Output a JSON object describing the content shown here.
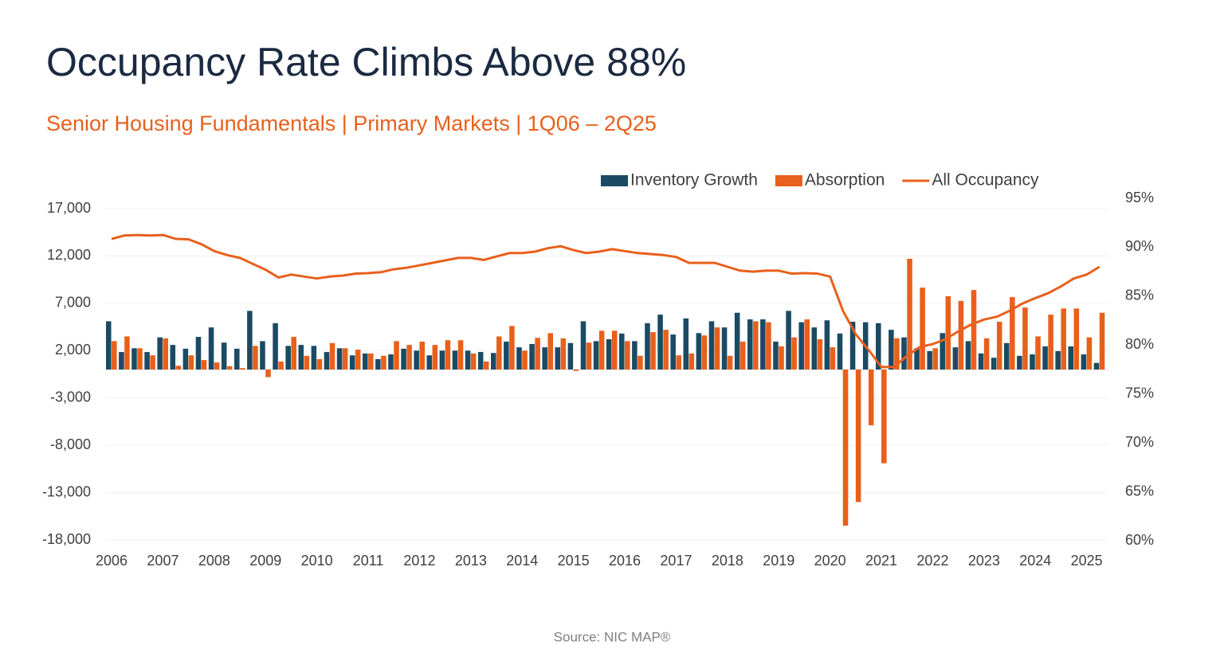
{
  "chart_data": {
    "type": "bar-line",
    "title": "Occupancy Rate Climbs Above 88%",
    "subtitle": "Senior Housing Fundamentals | Primary Markets | 1Q06 – 2Q25",
    "source": "Source: NIC MAP®",
    "categories": [
      "2006",
      null,
      null,
      null,
      "2007",
      null,
      null,
      null,
      "2008",
      null,
      null,
      null,
      "2009",
      null,
      null,
      null,
      "2010",
      null,
      null,
      null,
      "2011",
      null,
      null,
      null,
      "2012",
      null,
      null,
      null,
      "2013",
      null,
      null,
      null,
      "2014",
      null,
      null,
      null,
      "2015",
      null,
      null,
      null,
      "2016",
      null,
      null,
      null,
      "2017",
      null,
      null,
      null,
      "2018",
      null,
      null,
      null,
      "2019",
      null,
      null,
      null,
      "2020",
      null,
      null,
      null,
      "2021",
      null,
      null,
      null,
      "2022",
      null,
      null,
      null,
      "2023",
      null,
      null,
      null,
      "2024",
      null,
      null,
      null,
      "2025",
      null
    ],
    "series": [
      {
        "name": "Inventory Growth",
        "color": "#1b4a63",
        "type": "bar",
        "values": [
          5100,
          1850,
          2250,
          1850,
          3400,
          2600,
          2200,
          3450,
          4450,
          2850,
          2200,
          6200,
          3000,
          4900,
          2500,
          2600,
          2500,
          1850,
          2250,
          1500,
          1700,
          1100,
          1600,
          2200,
          2000,
          1500,
          2000,
          2000,
          2000,
          1850,
          1750,
          2950,
          2350,
          2700,
          2350,
          2350,
          2800,
          5100,
          3000,
          3200,
          3800,
          3000,
          4900,
          5800,
          3700,
          5400,
          3850,
          5100,
          4450,
          6000,
          5300,
          5300,
          2950,
          6200,
          5000,
          4450,
          5200,
          3800,
          5050,
          5000,
          4900,
          4200,
          3400,
          2250,
          1950,
          3850,
          2350,
          3000,
          1700,
          1250,
          2800,
          1450,
          1600,
          2450,
          1950,
          2450,
          1600,
          700
        ]
      },
      {
        "name": "Absorption",
        "color": "#e8601c",
        "type": "bar",
        "values": [
          3000,
          3500,
          2250,
          1500,
          3300,
          400,
          1500,
          1000,
          750,
          350,
          150,
          2500,
          -800,
          850,
          3450,
          1450,
          1100,
          2800,
          2250,
          2100,
          1700,
          1450,
          3000,
          2600,
          2950,
          2600,
          3100,
          3100,
          1700,
          850,
          3500,
          4600,
          2000,
          3350,
          3850,
          3300,
          -150,
          2850,
          4100,
          4100,
          3000,
          1450,
          3950,
          4200,
          1500,
          1700,
          3600,
          4450,
          1450,
          2950,
          5100,
          5000,
          2450,
          3400,
          5300,
          3200,
          2350,
          -16500,
          -14000,
          -5900,
          -9900,
          3300,
          11700,
          8650,
          2250,
          7750,
          7250,
          8400,
          3300,
          5050,
          7650,
          6550,
          3500,
          5800,
          6450,
          6450,
          3400,
          6000
        ]
      },
      {
        "name": "All Occupancy",
        "color": "#e8601c",
        "type": "line",
        "axis": "y2",
        "values": [
          90.85,
          91.2,
          91.25,
          91.2,
          91.25,
          90.85,
          90.8,
          90.3,
          89.6,
          89.2,
          88.9,
          88.3,
          87.7,
          86.9,
          87.2,
          87.0,
          86.8,
          87.0,
          87.1,
          87.3,
          87.35,
          87.45,
          87.75,
          87.9,
          88.15,
          88.4,
          88.65,
          88.9,
          88.9,
          88.7,
          89.05,
          89.4,
          89.4,
          89.55,
          89.9,
          90.1,
          89.7,
          89.4,
          89.55,
          89.8,
          89.6,
          89.4,
          89.3,
          89.2,
          89.0,
          88.4,
          88.4,
          88.4,
          88.0,
          87.6,
          87.5,
          87.6,
          87.6,
          87.3,
          87.35,
          87.3,
          87.0,
          83.5,
          81.1,
          79.5,
          77.75,
          77.75,
          78.9,
          79.8,
          80.1,
          80.6,
          81.4,
          82.1,
          82.6,
          82.9,
          83.5,
          84.25,
          84.8,
          85.3,
          86.0,
          86.8,
          87.2,
          88.0
        ]
      }
    ],
    "ylim": [
      -18000,
      17000
    ],
    "yticks": [
      {
        "value": -18000,
        "label": "-18,000"
      },
      {
        "value": -13000,
        "label": "-13,000"
      },
      {
        "value": -8000,
        "label": "-8,000"
      },
      {
        "value": -3000,
        "label": "-3,000"
      },
      {
        "value": 2000,
        "label": "2,000"
      },
      {
        "value": 7000,
        "label": "7,000"
      },
      {
        "value": 12000,
        "label": "12,000"
      },
      {
        "value": 17000,
        "label": "17,000"
      }
    ],
    "y2lim": [
      60,
      95
    ],
    "y2ticks": [
      {
        "value": 60,
        "label": "60%"
      },
      {
        "value": 65,
        "label": "65%"
      },
      {
        "value": 70,
        "label": "70%"
      },
      {
        "value": 75,
        "label": "75%"
      },
      {
        "value": 80,
        "label": "80%"
      },
      {
        "value": 85,
        "label": "85%"
      },
      {
        "value": 90,
        "label": "90%"
      },
      {
        "value": 95,
        "label": "95%"
      }
    ],
    "grid": true,
    "legend": "top-right"
  }
}
